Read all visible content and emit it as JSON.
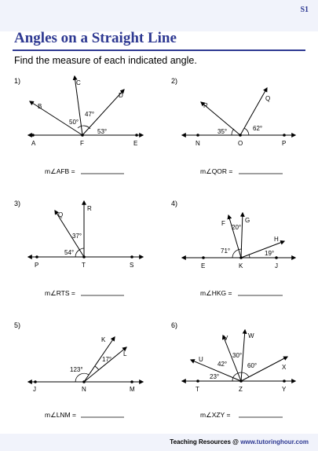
{
  "header": {
    "code": "S1",
    "title": "Angles on a Straight Line",
    "instruction": "Find the measure of each indicated angle."
  },
  "problems": [
    {
      "number": "1)",
      "points": [
        "A",
        "F",
        "E",
        "B",
        "C",
        "D"
      ],
      "angles": [
        "50°",
        "47°",
        "53°"
      ],
      "question": "m∠AFB = "
    },
    {
      "number": "2)",
      "points": [
        "N",
        "O",
        "P",
        "R",
        "Q"
      ],
      "angles": [
        "35°",
        "62°"
      ],
      "question": "m∠QOR = "
    },
    {
      "number": "3)",
      "points": [
        "P",
        "T",
        "S",
        "Q",
        "R"
      ],
      "angles": [
        "37°",
        "54°"
      ],
      "question": "m∠RTS = "
    },
    {
      "number": "4)",
      "points": [
        "E",
        "K",
        "J",
        "F",
        "G",
        "H"
      ],
      "angles": [
        "20°",
        "71°",
        "19°"
      ],
      "question": "m∠HKG = "
    },
    {
      "number": "5)",
      "points": [
        "J",
        "N",
        "M",
        "K",
        "L"
      ],
      "angles": [
        "17°",
        "123°"
      ],
      "question": "m∠LNM = "
    },
    {
      "number": "6)",
      "points": [
        "T",
        "Z",
        "Y",
        "U",
        "V",
        "W",
        "X"
      ],
      "angles": [
        "30°",
        "42°",
        "60°",
        "23°"
      ],
      "question": "m∠XZY = "
    }
  ],
  "footer": {
    "prefix": "Teaching Resources @ ",
    "site": "www.tutoringhour.com"
  }
}
